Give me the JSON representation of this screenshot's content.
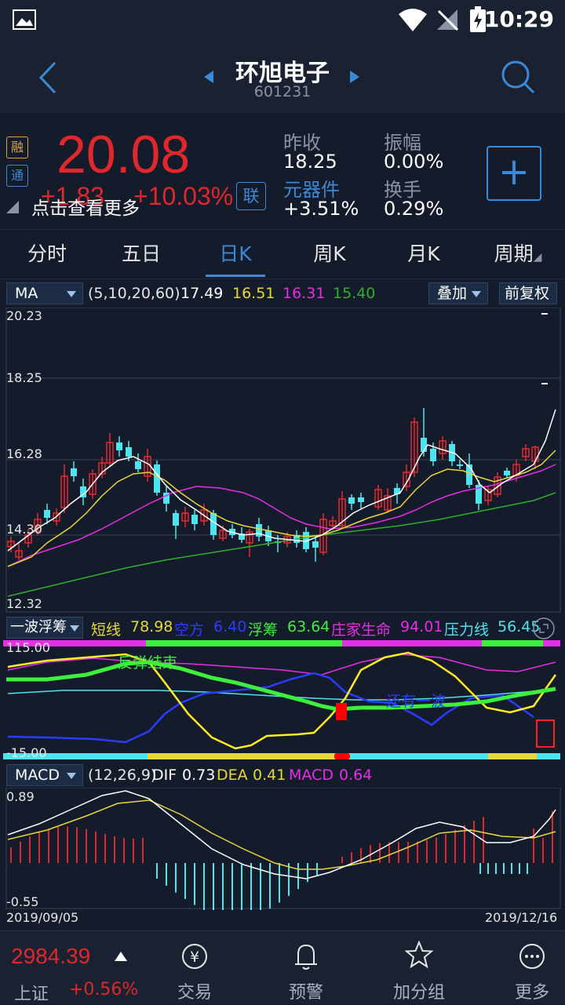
{
  "status_bar": {
    "time": "10:29"
  },
  "header": {
    "title": "环旭电子",
    "code": "601231"
  },
  "quote": {
    "price": "20.08",
    "change": "+1.83",
    "change_pct": "+10.03%",
    "more_label": "点击查看更多",
    "tag_margin": "融",
    "tag_connect": "通",
    "lian_label": "联",
    "prev_close_label": "昨收",
    "prev_close": "18.25",
    "amplitude_label": "振幅",
    "amplitude": "0.00%",
    "sector_label": "元器件",
    "sector_change": "+3.51%",
    "turnover_label": "换手",
    "turnover": "0.29%",
    "add_label": "+"
  },
  "tabs": [
    {
      "label": "分时"
    },
    {
      "label": "五日"
    },
    {
      "label": "日K"
    },
    {
      "label": "周K"
    },
    {
      "label": "月K"
    },
    {
      "label": "周期"
    }
  ],
  "ma_row": {
    "indicator": "MA",
    "params": "(5,10,20,60)",
    "ma5": "17.49",
    "ma10": "16.51",
    "ma20": "16.31",
    "ma60": "15.40",
    "overlay_label": "叠加",
    "adjust_label": "前复权"
  },
  "kline": {
    "price_ticks": [
      "20.23",
      "18.25",
      "16.28",
      "14.30",
      "12.32"
    ],
    "colors": {
      "up": "#e8292d",
      "down": "#4fe3ee",
      "ma5": "#ffffff",
      "ma10": "#e6d83a",
      "ma20": "#e62ee6",
      "ma60": "#2fae2f"
    }
  },
  "wave_row": {
    "indicator": "一波浮筹",
    "short_label": "短线",
    "short_value": "78.98",
    "empty_label": "空方",
    "empty_value": "6.40",
    "float_label": "浮筹",
    "float_value": "63.64",
    "life_label": "庄家生命",
    "life_value": "94.01",
    "pressure_label": "压力线",
    "pressure_value": "56.45",
    "max": "115.00",
    "min": "-15.00",
    "annotation1": "反弹结束",
    "annotation2": "还有一波"
  },
  "macd_row": {
    "indicator": "MACD",
    "params": "(12,26,9)",
    "dif_label": "DIF",
    "dif_value": "0.73",
    "dea_label": "DEA",
    "dea_value": "0.41",
    "macd_label": "MACD",
    "macd_value": "0.64",
    "max": "0.89",
    "min": "-0.55",
    "start_date": "2019/09/05",
    "end_date": "2019/12/16"
  },
  "bottom_bar": {
    "index_value": "2984.39",
    "index_name": "上证",
    "index_change": "+0.56%",
    "nav": [
      {
        "label": "交易",
        "icon": "yuan-icon"
      },
      {
        "label": "预警",
        "icon": "bell-icon"
      },
      {
        "label": "加分组",
        "icon": "star-icon"
      },
      {
        "label": "更多",
        "icon": "more-icon"
      }
    ]
  }
}
